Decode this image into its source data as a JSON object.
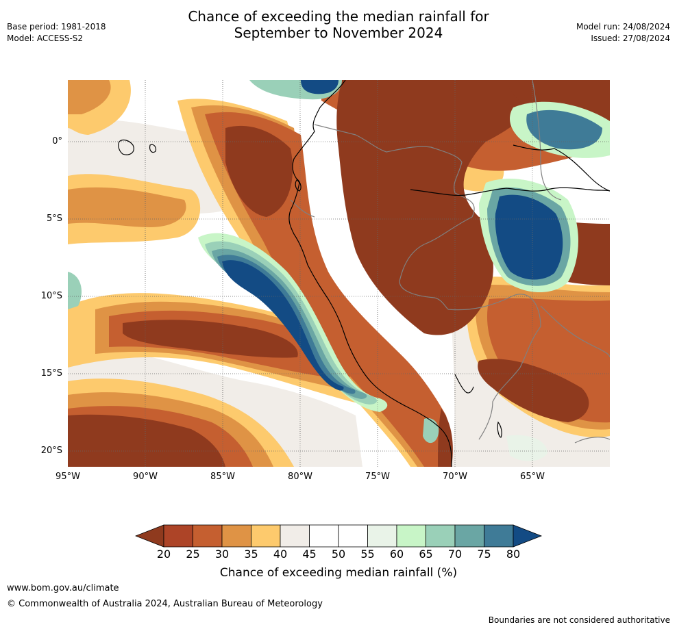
{
  "title": {
    "line1": "Chance of exceeding the median rainfall for",
    "line2": "September to November 2024"
  },
  "meta_left": {
    "base_period": "Base period: 1981-2018",
    "model": "Model: ACCESS-S2"
  },
  "meta_right": {
    "model_run": "Model run: 24/08/2024",
    "issued": "Issued: 27/08/2024"
  },
  "map": {
    "lat_labels": [
      "0°",
      "5°S",
      "10°S",
      "15°S",
      "20°S"
    ],
    "lon_labels": [
      "95°W",
      "90°W",
      "85°W",
      "80°W",
      "75°W",
      "70°W",
      "65°W"
    ],
    "extent": {
      "lon_min": -95,
      "lon_max": -60,
      "lat_min": -21,
      "lat_max": 4
    }
  },
  "legend": {
    "label": "Chance of exceeding median rainfall (%)",
    "ticks": [
      "20",
      "25",
      "30",
      "35",
      "40",
      "45",
      "50",
      "55",
      "60",
      "65",
      "70",
      "75",
      "80"
    ],
    "colors": [
      "#8f3a1e",
      "#ad4427",
      "#c55f30",
      "#df9345",
      "#fdca6d",
      "#f1ede8",
      "#ffffff",
      "#ffffff",
      "#e9f3e8",
      "#c8f5c7",
      "#9ad0b8",
      "#6aa6a4",
      "#3f7b97",
      "#134b84"
    ]
  },
  "footer": {
    "url": "www.bom.gov.au/climate",
    "copyright": "© Commonwealth of Australia 2024, Australian Bureau of Meteorology",
    "note": "Boundaries are not considered authoritative"
  }
}
